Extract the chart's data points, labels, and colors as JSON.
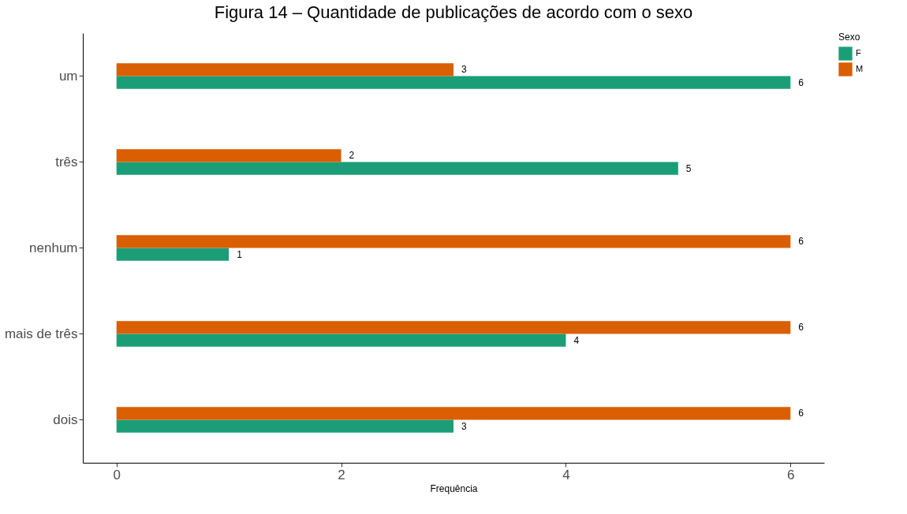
{
  "chart_data": {
    "type": "bar",
    "orientation": "horizontal",
    "title": "Figura 14 – Quantidade de publicações de acordo com o sexo",
    "xlabel": "Frequência",
    "legend_title": "Sexo",
    "categories": [
      "um",
      "três",
      "nenhum",
      "mais de três",
      "dois"
    ],
    "series": [
      {
        "name": "F",
        "color": "#1b9e77",
        "values": [
          6,
          5,
          1,
          4,
          3
        ]
      },
      {
        "name": "M",
        "color": "#d95f02",
        "values": [
          3,
          2,
          6,
          6,
          6
        ]
      }
    ],
    "xlim": [
      -0.3,
      6.3
    ],
    "xticks": [
      0,
      2,
      4,
      6
    ],
    "grid": false,
    "legend": "right",
    "data_labels": true
  }
}
